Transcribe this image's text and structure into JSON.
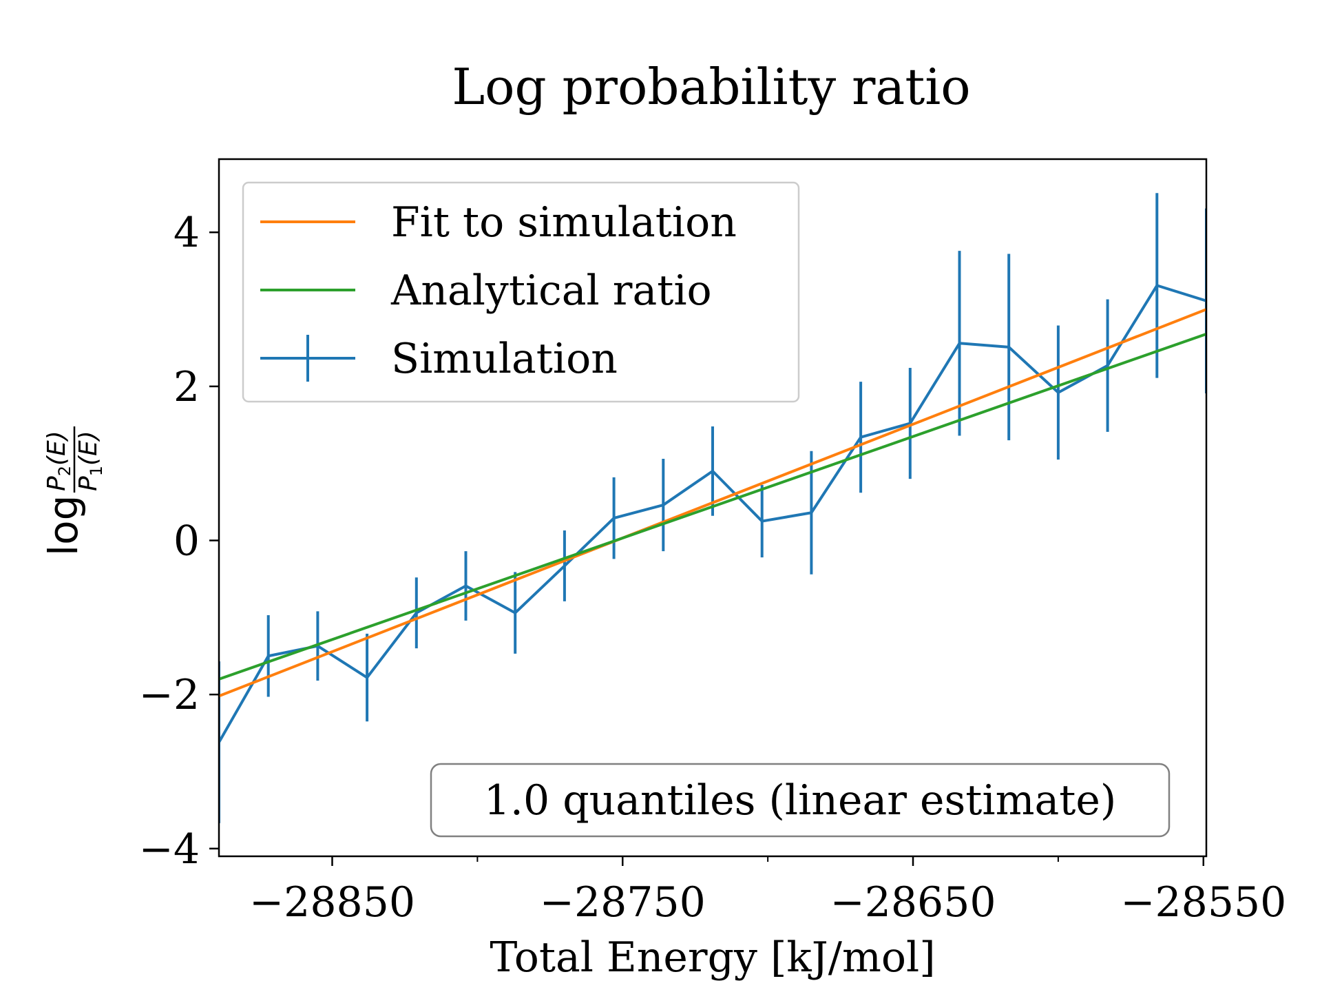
{
  "chart_data": {
    "type": "line",
    "title": "Log probability ratio",
    "xlabel": "Total Energy [kJ/mol]",
    "ylabel": "log P2(E)/P1(E)",
    "xlim": [
      -28889,
      -28549
    ],
    "ylim": [
      -4.1,
      4.95
    ],
    "xticks": [
      -28850,
      -28750,
      -28650,
      -28550
    ],
    "xtick_labels": [
      "−28850",
      "−28750",
      "−28650",
      "−28550"
    ],
    "xticks_minor": [
      -28800,
      -28700,
      -28600
    ],
    "yticks": [
      -4,
      -2,
      0,
      2,
      4
    ],
    "ytick_labels": [
      "−4",
      "−2",
      "0",
      "2",
      "4"
    ],
    "grid": false,
    "legend_position": "top-left",
    "series": [
      {
        "name": "Fit to simulation",
        "kind": "line",
        "color": "#ff7f0e",
        "x": [
          -28889,
          -28549
        ],
        "y": [
          -2.02,
          3.0
        ]
      },
      {
        "name": "Analytical ratio",
        "kind": "line",
        "color": "#2ca02c",
        "x": [
          -28889,
          -28549
        ],
        "y": [
          -1.8,
          2.68
        ]
      },
      {
        "name": "Simulation",
        "kind": "errorbar",
        "color": "#1f77b4",
        "x": [
          -28889,
          -28872,
          -28855,
          -28838,
          -28821,
          -28804,
          -28787,
          -28770,
          -28753,
          -28736,
          -28719,
          -28702,
          -28685,
          -28668,
          -28651,
          -28634,
          -28617,
          -28600,
          -28583,
          -28566,
          -28549
        ],
        "y": [
          -2.62,
          -1.5,
          -1.37,
          -1.78,
          -0.94,
          -0.59,
          -0.94,
          -0.33,
          0.29,
          0.46,
          0.9,
          0.25,
          0.36,
          1.34,
          1.52,
          2.56,
          2.51,
          1.92,
          2.27,
          3.31,
          3.11
        ],
        "yerr": [
          1.05,
          0.53,
          0.45,
          0.57,
          0.46,
          0.45,
          0.53,
          0.46,
          0.53,
          0.6,
          0.58,
          0.47,
          0.8,
          0.72,
          0.72,
          1.2,
          1.21,
          0.87,
          0.86,
          1.2,
          1.2
        ]
      }
    ],
    "annotation": "1.0 quantiles (linear estimate)"
  }
}
